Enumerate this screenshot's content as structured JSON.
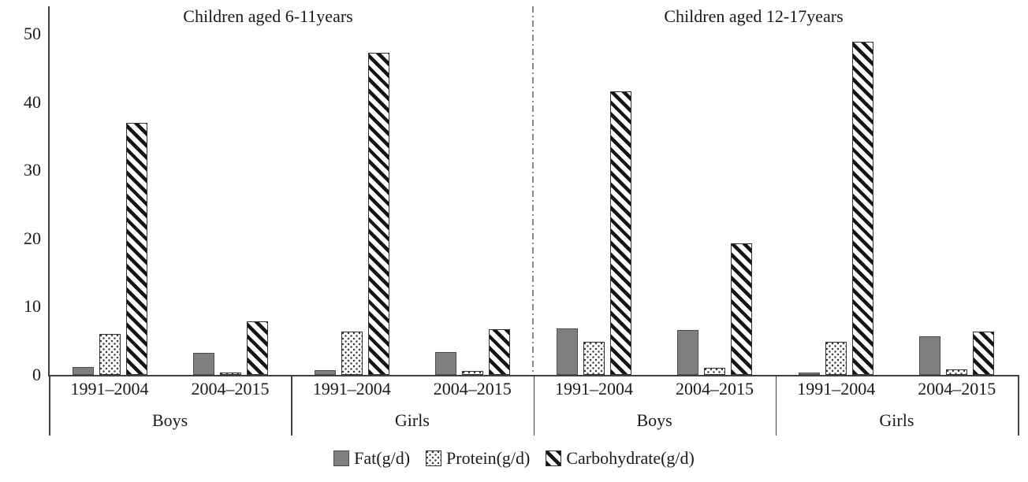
{
  "chart_data": {
    "type": "bar",
    "title": "",
    "xlabel": "",
    "ylabel": "",
    "ylim": [
      0,
      50
    ],
    "yticks": [
      0,
      10,
      20,
      30,
      40,
      50
    ],
    "grid": false,
    "legend_position": "bottom",
    "series": [
      {
        "name": "Fat(g/d)",
        "key": "fat",
        "pattern": "solid-gray",
        "fill": "#7f7f7f"
      },
      {
        "name": "Protein(g/d)",
        "key": "protein",
        "pattern": "dots",
        "fill": "#ffffff"
      },
      {
        "name": "Carbohydrate(g/d)",
        "key": "carbohydrate",
        "pattern": "diagonal-stripes",
        "fill": "#141414"
      }
    ],
    "panels": [
      {
        "title": "Children aged 6-11years",
        "groups": [
          {
            "label": "Boys",
            "clusters": [
              {
                "label": "1991–2004",
                "values": [
                  1.2,
                  6.0,
                  37.0
                ]
              },
              {
                "label": "2004–2015",
                "values": [
                  3.2,
                  0.3,
                  7.9
                ]
              }
            ]
          },
          {
            "label": "Girls",
            "clusters": [
              {
                "label": "1991–2004",
                "values": [
                  0.7,
                  6.4,
                  47.2
                ]
              },
              {
                "label": "2004–2015",
                "values": [
                  3.4,
                  0.6,
                  6.7
                ]
              }
            ]
          }
        ]
      },
      {
        "title": "Children aged 12-17years",
        "groups": [
          {
            "label": "Boys",
            "clusters": [
              {
                "label": "1991–2004",
                "values": [
                  6.8,
                  4.8,
                  41.6
                ]
              },
              {
                "label": "2004–2015",
                "values": [
                  6.6,
                  1.0,
                  19.3
                ]
              }
            ]
          },
          {
            "label": "Girls",
            "clusters": [
              {
                "label": "1991–2004",
                "values": [
                  0.4,
                  4.8,
                  48.9
                ]
              },
              {
                "label": "2004–2015",
                "values": [
                  5.7,
                  0.8,
                  6.3
                ]
              }
            ]
          }
        ]
      }
    ]
  }
}
